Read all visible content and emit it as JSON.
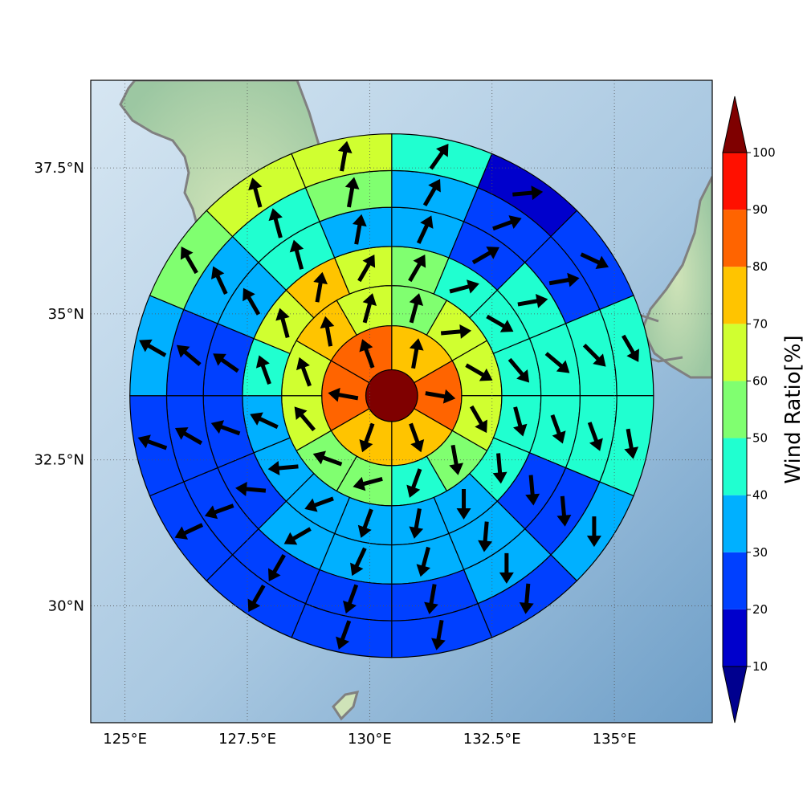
{
  "chart_data": {
    "type": "heatmap",
    "layout": "polar-sector",
    "colorbar": {
      "label": "Wind Ratio[%]",
      "ticks": [
        "10",
        "20",
        "30",
        "40",
        "50",
        "60",
        "70",
        "80",
        "90",
        "100"
      ],
      "levels": [
        10,
        20,
        30,
        40,
        50,
        60,
        70,
        80,
        90,
        100
      ],
      "colors": [
        "#0000cc",
        "#0040ff",
        "#00b0ff",
        "#20ffd0",
        "#80ff70",
        "#d0ff30",
        "#ffc400",
        "#ff6400",
        "#ff1000"
      ],
      "under_color": "#00008f",
      "over_color": "#7f0000",
      "extend": "both"
    },
    "map": {
      "lon_range": [
        124.3,
        137
      ],
      "lat_range": [
        28,
        39
      ],
      "x_ticks": [
        "125°E",
        "127.5°E",
        "130°E",
        "132.5°E",
        "135°E"
      ],
      "x_tick_values": [
        125,
        127.5,
        130,
        132.5,
        135
      ],
      "y_ticks": [
        "37.5°N",
        "35°N",
        "32.5°N",
        "30°N"
      ],
      "y_tick_values": [
        37.5,
        35,
        32.5,
        30
      ],
      "grid": true,
      "coastline_color": "#808080"
    },
    "center": {
      "lon": 130.45,
      "lat": 33.6
    },
    "rings": [
      {
        "inner_deg": 0.0,
        "outer_deg": 0.53,
        "sectors": 1,
        "values": [
          100
        ],
        "wind_dir": [
          null
        ]
      },
      {
        "inner_deg": 0.53,
        "outer_deg": 1.43,
        "sectors": 6,
        "values": [
          75,
          85,
          75,
          75,
          85,
          85
        ],
        "wind_dir": [
          10,
          100,
          160,
          200,
          280,
          340
        ]
      },
      {
        "inner_deg": 1.43,
        "outer_deg": 2.25,
        "sectors": 12,
        "values": [
          55,
          65,
          65,
          65,
          55,
          45,
          55,
          55,
          65,
          65,
          75,
          65
        ],
        "wind_dir": [
          15,
          85,
          120,
          150,
          170,
          200,
          255,
          290,
          320,
          340,
          350,
          15
        ]
      },
      {
        "inner_deg": 2.25,
        "outer_deg": 3.05,
        "sectors": 16,
        "values": [
          55,
          45,
          45,
          45,
          45,
          45,
          35,
          35,
          35,
          35,
          35,
          35,
          45,
          65,
          75,
          65
        ],
        "wind_dir": [
          30,
          75,
          120,
          140,
          165,
          175,
          180,
          190,
          200,
          250,
          265,
          295,
          340,
          345,
          10,
          30
        ]
      },
      {
        "inner_deg": 3.05,
        "outer_deg": 3.85,
        "sectors": 16,
        "values": [
          35,
          25,
          45,
          45,
          45,
          25,
          35,
          35,
          35,
          35,
          25,
          25,
          25,
          35,
          45,
          35
        ],
        "wind_dir": [
          25,
          60,
          80,
          130,
          160,
          175,
          185,
          195,
          205,
          240,
          275,
          290,
          305,
          330,
          345,
          10
        ]
      },
      {
        "inner_deg": 3.85,
        "outer_deg": 4.6,
        "sectors": 16,
        "values": [
          35,
          25,
          25,
          45,
          45,
          25,
          35,
          25,
          25,
          25,
          25,
          25,
          25,
          35,
          45,
          55
        ],
        "wind_dir": [
          30,
          70,
          80,
          135,
          160,
          175,
          180,
          190,
          200,
          210,
          250,
          300,
          310,
          335,
          345,
          10
        ]
      },
      {
        "inner_deg": 4.6,
        "outer_deg": 5.35,
        "sectors": 16,
        "values": [
          45,
          15,
          25,
          45,
          45,
          35,
          25,
          25,
          25,
          25,
          25,
          25,
          35,
          55,
          65,
          65
        ],
        "wind_dir": [
          35,
          85,
          115,
          150,
          170,
          180,
          185,
          190,
          200,
          210,
          245,
          290,
          300,
          330,
          345,
          10
        ]
      }
    ]
  }
}
